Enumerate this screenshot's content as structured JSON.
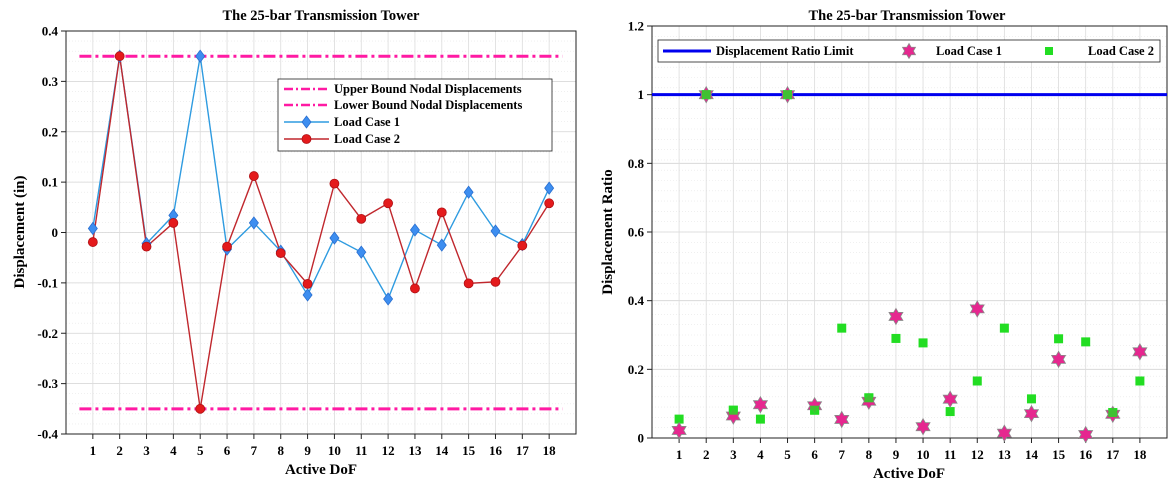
{
  "chart_data": [
    {
      "type": "line",
      "title": "The 25-bar Transmission Tower",
      "xlabel": "Active DoF",
      "ylabel": "Displacement (in)",
      "x": [
        1,
        2,
        3,
        4,
        5,
        6,
        7,
        8,
        9,
        10,
        11,
        12,
        13,
        14,
        15,
        16,
        17,
        18
      ],
      "xticks": [
        "1",
        "2",
        "3",
        "4",
        "5",
        "6",
        "7",
        "8",
        "9",
        "10",
        "11",
        "12",
        "13",
        "14",
        "15",
        "16",
        "17",
        "18"
      ],
      "xlim": [
        0,
        19
      ],
      "ylim": [
        -0.4,
        0.4
      ],
      "yticks": [
        "0.4",
        "0.3",
        "0.2",
        "0.1",
        "0",
        "-0.1",
        "-0.2",
        "-0.3",
        "-0.4"
      ],
      "grid": true,
      "legend_position": "right",
      "bounds": [
        {
          "name": "Upper Bound Nodal Displacements",
          "value": 0.35,
          "color": "#ff1aa3"
        },
        {
          "name": "Lower Bound Nodal Displacements",
          "value": -0.35,
          "color": "#ff1aa3"
        }
      ],
      "series": [
        {
          "name": "Load Case 1",
          "color": "#2e9be0",
          "marker": "diamond",
          "values": [
            0.008,
            0.35,
            -0.022,
            0.034,
            0.35,
            -0.033,
            0.019,
            -0.037,
            -0.124,
            -0.011,
            -0.039,
            -0.132,
            0.005,
            -0.025,
            0.08,
            0.003,
            -0.024,
            0.088
          ]
        },
        {
          "name": "Load Case 2",
          "color": "#c0272d",
          "marker": "circle",
          "values": [
            -0.019,
            0.35,
            -0.028,
            0.019,
            -0.35,
            -0.028,
            0.112,
            -0.041,
            -0.102,
            0.097,
            0.027,
            0.058,
            -0.111,
            0.04,
            -0.101,
            -0.098,
            -0.026,
            0.058
          ]
        }
      ]
    },
    {
      "type": "scatter",
      "title": "The 25-bar Transmission Tower",
      "xlabel": "Active DoF",
      "ylabel": "Displacement Ratio",
      "x": [
        1,
        2,
        3,
        4,
        5,
        6,
        7,
        8,
        9,
        10,
        11,
        12,
        13,
        14,
        15,
        16,
        17,
        18
      ],
      "xticks": [
        "1",
        "2",
        "3",
        "4",
        "5",
        "6",
        "7",
        "8",
        "9",
        "10",
        "11",
        "12",
        "13",
        "14",
        "15",
        "16",
        "17",
        "18"
      ],
      "xlim": [
        0,
        19
      ],
      "ylim": [
        0,
        1.2
      ],
      "yticks": [
        "1.2",
        "1",
        "0.8",
        "0.6",
        "0.4",
        "0.2",
        "0"
      ],
      "grid": true,
      "legend_position": "top",
      "limit": {
        "name": "Displacement Ratio Limit",
        "value": 1.0,
        "color": "#0000ee"
      },
      "series": [
        {
          "name": "Load Case 1",
          "color": "#e6278f",
          "marker": "hexagram",
          "values": [
            0.022,
            1.0,
            0.064,
            0.097,
            1.0,
            0.094,
            0.054,
            0.107,
            0.354,
            0.033,
            0.113,
            0.376,
            0.014,
            0.071,
            0.229,
            0.01,
            0.069,
            0.251
          ]
        },
        {
          "name": "Load Case 2",
          "color": "#22dd22",
          "marker": "square",
          "values": [
            0.055,
            1.0,
            0.081,
            0.055,
            1.0,
            0.081,
            0.32,
            0.117,
            0.29,
            0.277,
            0.077,
            0.166,
            0.32,
            0.114,
            0.289,
            0.28,
            0.074,
            0.166
          ]
        }
      ]
    }
  ]
}
